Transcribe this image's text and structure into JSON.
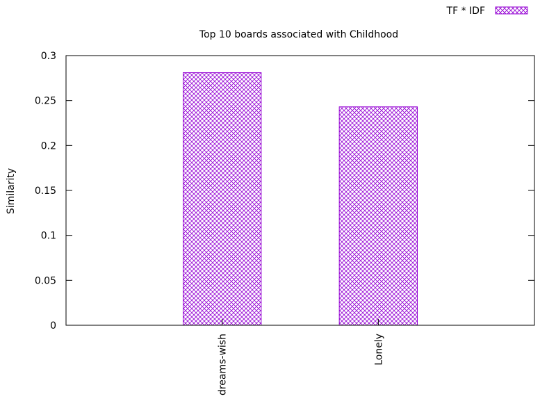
{
  "chart_data": {
    "type": "bar",
    "title": "Top 10 boards associated with Childhood",
    "xlabel": "",
    "ylabel": "Similarity",
    "categories": [
      "dreams-wish",
      "Lonely"
    ],
    "series": [
      {
        "name": "TF * IDF",
        "values": [
          0.281,
          0.243
        ],
        "color": "#9400d3"
      }
    ],
    "ylim": [
      0,
      0.3
    ],
    "yticks": [
      "0",
      "0.05",
      "0.1",
      "0.15",
      "0.2",
      "0.25",
      "0.3"
    ],
    "ytick_values": [
      0,
      0.05,
      0.1,
      0.15,
      0.2,
      0.25,
      0.3
    ],
    "grid": false,
    "legend_position": "top-right",
    "fill_pattern": "crosshatch"
  }
}
